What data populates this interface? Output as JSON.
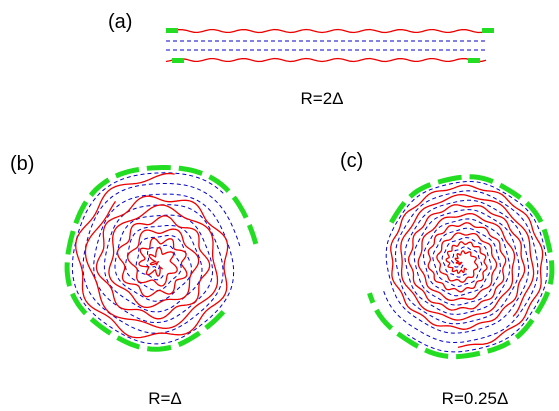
{
  "panels": [
    {
      "label": "(a)",
      "caption": "R=2Δ"
    },
    {
      "label": "(b)",
      "caption": "R=Δ"
    },
    {
      "label": "(c)",
      "caption": "R=0.25Δ"
    }
  ]
}
